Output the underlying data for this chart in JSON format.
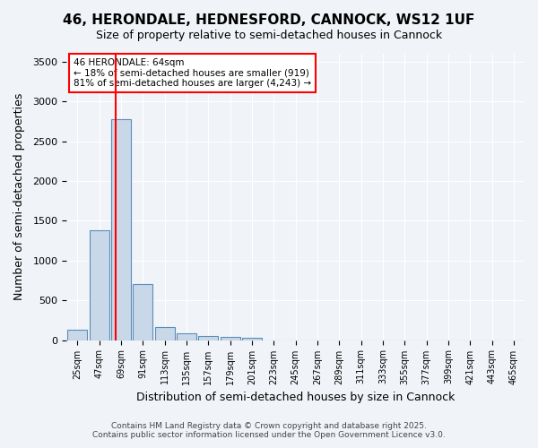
{
  "title_line1": "46, HERONDALE, HEDNESFORD, CANNOCK, WS12 1UF",
  "title_line2": "Size of property relative to semi-detached houses in Cannock",
  "xlabel": "Distribution of semi-detached houses by size in Cannock",
  "ylabel": "Number of semi-detached properties",
  "bins": [
    "25sqm",
    "47sqm",
    "69sqm",
    "91sqm",
    "113sqm",
    "135sqm",
    "157sqm",
    "179sqm",
    "201sqm",
    "223sqm",
    "245sqm",
    "267sqm",
    "289sqm",
    "311sqm",
    "333sqm",
    "355sqm",
    "377sqm",
    "399sqm",
    "421sqm",
    "443sqm",
    "465sqm"
  ],
  "values": [
    130,
    1380,
    2780,
    700,
    160,
    90,
    55,
    35,
    30,
    0,
    0,
    0,
    0,
    0,
    0,
    0,
    0,
    0,
    0,
    0,
    0
  ],
  "bar_color": "#c8d8e8",
  "bar_edge_color": "#5b8db8",
  "red_line_x": 1.77,
  "annotation_title": "46 HERONDALE: 64sqm",
  "annotation_line2": "← 18% of semi-detached houses are smaller (919)",
  "annotation_line3": "81% of semi-detached houses are larger (4,243) →",
  "ylim": [
    0,
    3600
  ],
  "yticks": [
    0,
    500,
    1000,
    1500,
    2000,
    2500,
    3000,
    3500
  ],
  "footer_line1": "Contains HM Land Registry data © Crown copyright and database right 2025.",
  "footer_line2": "Contains public sector information licensed under the Open Government Licence v3.0.",
  "bg_color": "#f0f4f8",
  "plot_bg_color": "#f0f4f8"
}
